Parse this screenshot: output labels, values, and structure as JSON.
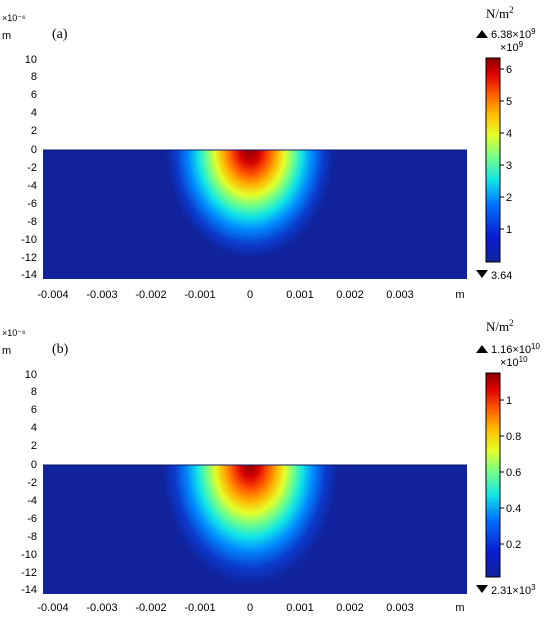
{
  "panels": [
    {
      "label": "(a)",
      "y_exponent": "×10⁻⁶",
      "y_unit": "m",
      "x_unit": "m",
      "y_ticks": [
        "10",
        "8",
        "6",
        "4",
        "2",
        "0",
        "-2",
        "-4",
        "-6",
        "-8",
        "-10",
        "-12",
        "-14"
      ],
      "x_ticks": [
        "-0.004",
        "-0.003",
        "-0.002",
        "-0.001",
        "0",
        "0.001",
        "0.002",
        "0.003"
      ],
      "colorbar": {
        "unit_base": "N/m",
        "unit_sup": "2",
        "max_base": "6.38×10",
        "max_sup": "9",
        "scale_base": "×10",
        "scale_sup": "9",
        "ticks": [
          "6",
          "5",
          "4",
          "3",
          "2",
          "1"
        ],
        "min_label": "3.64"
      }
    },
    {
      "label": "(b)",
      "y_exponent": "×10⁻⁶",
      "y_unit": "m",
      "x_unit": "m",
      "y_ticks": [
        "10",
        "8",
        "6",
        "4",
        "2",
        "0",
        "-2",
        "-4",
        "-6",
        "-8",
        "-10",
        "-12",
        "-14"
      ],
      "x_ticks": [
        "-0.004",
        "-0.003",
        "-0.002",
        "-0.001",
        "0",
        "0.001",
        "0.002",
        "0.003"
      ],
      "colorbar": {
        "unit_base": "N/m",
        "unit_sup": "2",
        "max_base": "1.16×10",
        "max_sup": "10",
        "scale_base": "×10",
        "scale_sup": "10",
        "ticks": [
          "1",
          "0.8",
          "0.6",
          "0.4",
          "0.2"
        ],
        "min_label": "2.31×10",
        "min_sup": "3"
      }
    }
  ],
  "colors": {
    "background_field": "#10239c",
    "hot_core": "#8b0000",
    "jet": [
      "#8b0000",
      "#d00000",
      "#ff3a00",
      "#ff8c00",
      "#ffd200",
      "#d8ff2a",
      "#7aff84",
      "#1ff4d8",
      "#00b8ff",
      "#0060ff",
      "#0a1cd0",
      "#10239c"
    ]
  }
}
